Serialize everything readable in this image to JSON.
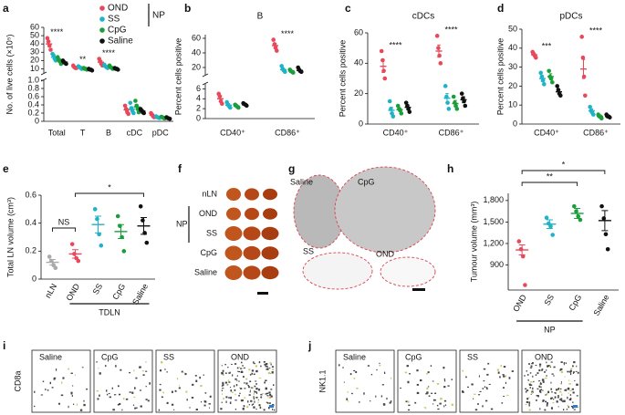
{
  "chart_data": [
    {
      "type": "dot",
      "panel": "a",
      "ylabel": "No. of live cells (×10⁵)",
      "categories": [
        "Total",
        "T",
        "B",
        "cDC",
        "pDC"
      ],
      "legend_group": "NP",
      "ysegments": [
        {
          "ylim": [
            0,
            1
          ],
          "yticks": [
            0,
            0.2,
            0.4,
            0.6,
            0.8,
            {
              "value": 1,
              "label": "1.0"
            }
          ]
        },
        {
          "ylim": [
            5,
            60
          ],
          "yticks": [
            10,
            20,
            30,
            40,
            50,
            60
          ]
        }
      ],
      "significance": [
        "****",
        "**",
        "****",
        null,
        null
      ],
      "series": [
        {
          "name": "OND",
          "color": "#e8485a",
          "values": [
            40,
            12,
            18,
            0.28,
            0.15
          ],
          "errors": [
            3,
            1,
            2,
            0.03,
            0.02
          ],
          "points": [
            [
              47,
              43,
              38,
              33
            ],
            [
              14,
              12,
              11,
              11
            ],
            [
              22,
              19,
              16,
              14
            ],
            [
              0.38,
              0.3,
              0.22,
              0.18
            ],
            [
              0.2,
              0.16,
              0.12,
              0.1
            ]
          ]
        },
        {
          "name": "SS",
          "color": "#1fb3c8",
          "values": [
            24,
            12,
            13,
            0.3,
            0.1
          ],
          "errors": [
            2,
            1,
            1,
            0.05,
            0.01
          ],
          "points": [
            [
              28,
              26,
              22,
              20
            ],
            [
              13,
              12,
              11,
              10
            ],
            [
              15,
              13,
              12,
              11
            ],
            [
              0.45,
              0.32,
              0.25,
              0.2
            ],
            [
              0.12,
              0.1,
              0.09,
              0.08
            ]
          ]
        },
        {
          "name": "CpG",
          "color": "#1a9e3a",
          "values": [
            20,
            10,
            12,
            0.35,
            0.09
          ],
          "errors": [
            2,
            1,
            1,
            0.05,
            0.01
          ],
          "points": [
            [
              24,
              21,
              19,
              16
            ],
            [
              11,
              10,
              10,
              9
            ],
            [
              14,
              12,
              11,
              10
            ],
            [
              0.5,
              0.38,
              0.3,
              0.22
            ],
            [
              0.11,
              0.1,
              0.08,
              0.07
            ]
          ]
        },
        {
          "name": "Saline",
          "color": "#111111",
          "values": [
            18,
            9,
            10,
            0.25,
            0.08
          ],
          "errors": [
            1,
            1,
            1,
            0.03,
            0.01
          ],
          "points": [
            [
              20,
              18,
              17,
              16
            ],
            [
              10,
              9,
              9,
              8
            ],
            [
              11,
              10,
              10,
              9
            ],
            [
              0.3,
              0.26,
              0.22,
              0.2
            ],
            [
              0.1,
              0.08,
              0.07,
              0.06
            ]
          ]
        }
      ]
    },
    {
      "type": "dot",
      "panel": "b",
      "title": "B",
      "ylabel": "Percent cells positive",
      "categories": [
        "CD40⁺",
        "CD86⁺"
      ],
      "ysegments": [
        {
          "ylim": [
            0,
            7
          ],
          "yticks": [
            0,
            2,
            4,
            6
          ]
        },
        {
          "ylim": [
            10,
            65
          ],
          "yticks": [
            20,
            40,
            60
          ]
        }
      ],
      "significance": [
        null,
        "****"
      ],
      "series": [
        {
          "color": "#e8485a",
          "values": [
            4,
            50
          ],
          "errors": [
            0.6,
            3
          ],
          "points": [
            [
              5,
              4.5,
              3.5,
              3
            ],
            [
              58,
              52,
              47,
              43
            ]
          ]
        },
        {
          "color": "#1fb3c8",
          "values": [
            2.7,
            17
          ],
          "errors": [
            0.3,
            2
          ],
          "points": [
            [
              3.3,
              2.8,
              2.5,
              2.2
            ],
            [
              22,
              18,
              16,
              14
            ]
          ]
        },
        {
          "color": "#1a9e3a",
          "values": [
            2.5,
            15
          ],
          "errors": [
            0.2,
            1
          ],
          "points": [
            [
              2.8,
              2.6,
              2.4,
              2.2
            ],
            [
              17,
              15,
              14,
              13
            ]
          ]
        },
        {
          "color": "#111111",
          "values": [
            2.8,
            16
          ],
          "errors": [
            0.1,
            1.5
          ],
          "points": [
            [
              3.1,
              2.9,
              2.8,
              2.6
            ],
            [
              20,
              17,
              15,
              14
            ]
          ]
        }
      ]
    },
    {
      "type": "dot",
      "panel": "c",
      "title": "cDCs",
      "ylabel": "Percent cells positive",
      "categories": [
        "CD40⁺",
        "CD86⁺"
      ],
      "ylim": [
        0,
        60
      ],
      "yticks": [
        0,
        20,
        40,
        60
      ],
      "significance": [
        "****",
        "****"
      ],
      "series": [
        {
          "color": "#e8485a",
          "values": [
            38,
            48
          ],
          "errors": [
            4,
            4
          ],
          "points": [
            [
              48,
              42,
              35,
              30
            ],
            [
              58,
              50,
              45,
              40
            ]
          ]
        },
        {
          "color": "#1fb3c8",
          "values": [
            9,
            17
          ],
          "errors": [
            2,
            3
          ],
          "points": [
            [
              15,
              10,
              7,
              5
            ],
            [
              25,
              18,
              14,
              10
            ]
          ]
        },
        {
          "color": "#1a9e3a",
          "values": [
            9.5,
            13.5
          ],
          "errors": [
            1,
            2
          ],
          "points": [
            [
              12,
              10,
              9,
              7
            ],
            [
              18,
              14,
              12,
              10
            ]
          ]
        },
        {
          "color": "#111111",
          "values": [
            11,
            16
          ],
          "errors": [
            1.5,
            2
          ],
          "points": [
            [
              14,
              12,
              10,
              8
            ],
            [
              20,
              17,
              15,
              12
            ]
          ]
        }
      ]
    },
    {
      "type": "dot",
      "panel": "d",
      "title": "pDCs",
      "ylabel": "Percent cells positive",
      "categories": [
        "CD40⁺",
        "CD86⁺"
      ],
      "ylim": [
        0,
        50
      ],
      "yticks": [
        0,
        10,
        20,
        30,
        40,
        50
      ],
      "significance": [
        "***",
        "****"
      ],
      "series": [
        {
          "color": "#e8485a",
          "values": [
            36.5,
            29
          ],
          "errors": [
            0.7,
            5
          ],
          "points": [
            [
              38,
              37,
              36,
              35
            ],
            [
              46,
              35,
              25,
              15
            ]
          ]
        },
        {
          "color": "#1fb3c8",
          "values": [
            24,
            7
          ],
          "errors": [
            1.5,
            1
          ],
          "points": [
            [
              27,
              25,
              23,
              21
            ],
            [
              9,
              7,
              6,
              5
            ]
          ]
        },
        {
          "color": "#1a9e3a",
          "values": [
            25,
            4
          ],
          "errors": [
            1.5,
            0.5
          ],
          "points": [
            [
              28,
              25,
              24,
              22
            ],
            [
              5,
              4,
              4,
              3
            ]
          ]
        },
        {
          "color": "#111111",
          "values": [
            17,
            4
          ],
          "errors": [
            1,
            0.3
          ],
          "points": [
            [
              20,
              18,
              16,
              15
            ],
            [
              5,
              4,
              4,
              3.5
            ]
          ]
        }
      ]
    },
    {
      "type": "dot",
      "panel": "e",
      "ylabel": "Total LN volume (cm³)",
      "categories": [
        "nLN",
        "OND",
        "SS",
        "CpG",
        "Saline"
      ],
      "ylim": [
        0,
        0.6
      ],
      "yticks": [
        0,
        0.2,
        0.4,
        0.6
      ],
      "significance_labels": [
        "NS",
        "*"
      ],
      "group_label": "TDLN",
      "series": [
        {
          "colors": [
            "#aaaaaa",
            "#e8485a",
            "#1fb3c8",
            "#1a9e3a",
            "#111111"
          ],
          "values": [
            0.12,
            0.18,
            0.39,
            0.34,
            0.38
          ],
          "errors": [
            0.02,
            0.03,
            0.06,
            0.05,
            0.06
          ],
          "points": [
            [
              0.16,
              0.13,
              0.1,
              0.08
            ],
            [
              0.25,
              0.18,
              0.15,
              0.13
            ],
            [
              0.5,
              0.43,
              0.32,
              0.24
            ],
            [
              0.45,
              0.38,
              0.3,
              0.2
            ],
            [
              0.52,
              0.42,
              0.33,
              0.26
            ]
          ]
        }
      ]
    },
    {
      "type": "dot",
      "panel": "h",
      "ylabel": "Tumour volume (mm³)",
      "categories": [
        "OND",
        "SS",
        "CpG",
        "Saline"
      ],
      "ylim": [
        550,
        1900
      ],
      "yticks": [
        900,
        {
          "value": 1200,
          "label": "1,200"
        },
        {
          "value": 1500,
          "label": "1,500"
        },
        {
          "value": 1800,
          "label": "1,800"
        }
      ],
      "significance_labels": [
        "**",
        "*"
      ],
      "group_label": "NP",
      "series": [
        {
          "colors": [
            "#e8485a",
            "#1fb3c8",
            "#1a9e3a",
            "#111111"
          ],
          "values": [
            1110,
            1470,
            1620,
            1520
          ],
          "errors": [
            70,
            60,
            70,
            140
          ],
          "points": [
            [
              1230,
              1120,
              1020,
              620
            ],
            [
              1560,
              1480,
              1440,
              1320
            ],
            [
              1720,
              1650,
              1580,
              1530
            ],
            [
              1720,
              1550,
              1330,
              1120
            ]
          ]
        }
      ]
    }
  ],
  "panels": {
    "f": {
      "label": "f",
      "rows": [
        "nLN",
        "OND",
        "SS",
        "CpG",
        "Saline"
      ],
      "group": "NP"
    },
    "g": {
      "label": "g",
      "regions": [
        "Saline",
        "CpG",
        "SS",
        "OND"
      ]
    },
    "i": {
      "label": "i",
      "stain": "CD8a",
      "images": [
        "Saline",
        "CpG",
        "SS",
        "OND"
      ]
    },
    "j": {
      "label": "j",
      "stain": "NK1.1",
      "images": [
        "Saline",
        "CpG",
        "SS",
        "OND"
      ]
    }
  }
}
